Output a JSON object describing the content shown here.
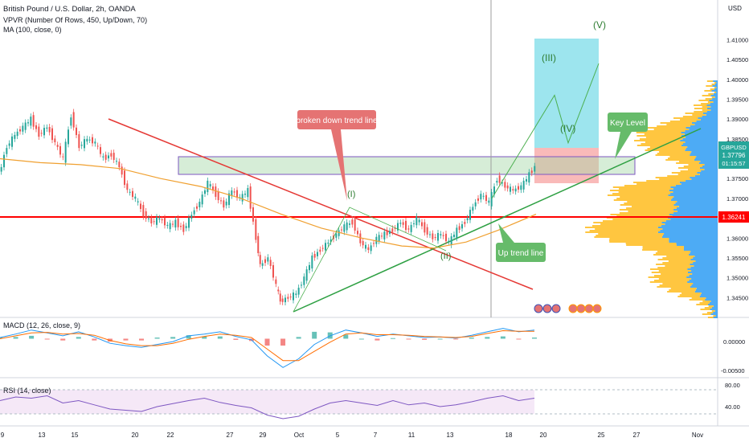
{
  "header": {
    "title": "British Pound / U.S. Dollar, 2h, OANDA",
    "vpvr": "VPVR (Number Of Rows, 450, Up/Down, 70)",
    "ma": "MA (100, close, 0)",
    "macd": "MACD (12, 26, close, 9)",
    "rsi": "RSI (14, close)"
  },
  "colors": {
    "up": "#26a69a",
    "down": "#ef5350",
    "ma": "#f0a030",
    "support": "#ff0000",
    "trend_up": "#2ea043",
    "trend_down": "#e53935",
    "target": "#26c6da",
    "stop": "#ef5350",
    "keylevel": "#a5d6a7",
    "wave": "#4caf50",
    "macd_line": "#2196f3",
    "signal_line": "#ff6d00",
    "rsi": "#7e57c2",
    "vpvr": "#ffb300",
    "vpvr_blue": "#2196f3",
    "price_tag": "#26a69a",
    "support_tag": "#ff0000"
  },
  "chart_data": {
    "type": "line",
    "instrument": "GBPUSD",
    "timeframe": "2h",
    "ylim": [
      1.34,
      1.42
    ],
    "x_ticks": [
      "9",
      "13",
      "15",
      "20",
      "22",
      "27",
      "29",
      "Oct",
      "5",
      "7",
      "11",
      "13",
      "18",
      "20",
      "25",
      "27",
      "Nov"
    ],
    "y_ticks": [
      "1.41000",
      "1.40500",
      "1.40000",
      "1.39500",
      "1.39000",
      "1.38500",
      "1.38000",
      "1.37500",
      "1.37000",
      "1.36500",
      "1.36000",
      "1.35500",
      "1.35000",
      "1.34500"
    ],
    "y_tick_values": [
      1.41,
      1.405,
      1.4,
      1.395,
      1.39,
      1.385,
      1.38,
      1.375,
      1.37,
      1.365,
      1.36,
      1.355,
      1.35,
      1.345
    ],
    "currency_label": "USD",
    "current_price": {
      "label": "GBPUSD",
      "value": "1.37796",
      "countdown": "01:15:57"
    },
    "support_level": {
      "value": "1.36241"
    },
    "price_path": [
      [
        0,
        1.376
      ],
      [
        10,
        1.383
      ],
      [
        20,
        1.386
      ],
      [
        30,
        1.388
      ],
      [
        40,
        1.39
      ],
      [
        50,
        1.386
      ],
      [
        60,
        1.388
      ],
      [
        70,
        1.384
      ],
      [
        80,
        1.38
      ],
      [
        90,
        1.391
      ],
      [
        100,
        1.383
      ],
      [
        110,
        1.385
      ],
      [
        120,
        1.384
      ],
      [
        130,
        1.38
      ],
      [
        140,
        1.381
      ],
      [
        150,
        1.378
      ],
      [
        160,
        1.372
      ],
      [
        170,
        1.37
      ],
      [
        180,
        1.366
      ],
      [
        190,
        1.364
      ],
      [
        200,
        1.365
      ],
      [
        210,
        1.363
      ],
      [
        220,
        1.364
      ],
      [
        230,
        1.362
      ],
      [
        240,
        1.366
      ],
      [
        250,
        1.369
      ],
      [
        260,
        1.374
      ],
      [
        270,
        1.371
      ],
      [
        280,
        1.368
      ],
      [
        290,
        1.372
      ],
      [
        300,
        1.37
      ],
      [
        310,
        1.372
      ],
      [
        320,
        1.36
      ],
      [
        325,
        1.353
      ],
      [
        335,
        1.355
      ],
      [
        345,
        1.348
      ],
      [
        350,
        1.344
      ],
      [
        360,
        1.345
      ],
      [
        370,
        1.346
      ],
      [
        380,
        1.35
      ],
      [
        390,
        1.355
      ],
      [
        400,
        1.357
      ],
      [
        410,
        1.359
      ],
      [
        420,
        1.361
      ],
      [
        430,
        1.363
      ],
      [
        440,
        1.364
      ],
      [
        450,
        1.359
      ],
      [
        460,
        1.357
      ],
      [
        470,
        1.36
      ],
      [
        480,
        1.361
      ],
      [
        490,
        1.362
      ],
      [
        500,
        1.364
      ],
      [
        510,
        1.362
      ],
      [
        520,
        1.365
      ],
      [
        530,
        1.362
      ],
      [
        540,
        1.36
      ],
      [
        550,
        1.361
      ],
      [
        560,
        1.359
      ],
      [
        570,
        1.362
      ],
      [
        580,
        1.364
      ],
      [
        590,
        1.368
      ],
      [
        600,
        1.371
      ],
      [
        610,
        1.369
      ],
      [
        620,
        1.375
      ],
      [
        630,
        1.373
      ],
      [
        640,
        1.372
      ],
      [
        650,
        1.373
      ],
      [
        660,
        1.376
      ],
      [
        667,
        1.378
      ]
    ],
    "ma_path": [
      [
        0,
        1.38
      ],
      [
        50,
        1.379
      ],
      [
        100,
        1.3785
      ],
      [
        150,
        1.3775
      ],
      [
        200,
        1.375
      ],
      [
        250,
        1.373
      ],
      [
        300,
        1.37
      ],
      [
        350,
        1.366
      ],
      [
        400,
        1.3625
      ],
      [
        450,
        1.36
      ],
      [
        500,
        1.358
      ],
      [
        540,
        1.3575
      ],
      [
        580,
        1.359
      ],
      [
        620,
        1.362
      ],
      [
        667,
        1.366
      ]
    ],
    "projection_wave": [
      [
        612,
        1.37
      ],
      [
        690,
        1.396
      ],
      [
        707,
        1.384
      ],
      [
        745,
        1.404
      ]
    ],
    "annotations": {
      "broken_trend": "broken down trend line",
      "key_level": "Key Level",
      "up_trend": "Up trend line",
      "wave1": "(I)",
      "wave2": "(II)",
      "wave3": "(III)",
      "wave4": "(IV)",
      "wave5": "(V)"
    },
    "macd_ticks": [
      "0.00000",
      "-0.00500"
    ],
    "rsi_ticks": [
      "80.00",
      "40.00"
    ],
    "macd_line": [
      0.0002,
      0.0008,
      0.0015,
      0.001,
      0.0005,
      0.0012,
      0.0003,
      -0.0008,
      -0.0012,
      -0.0015,
      -0.001,
      -0.0005,
      0.0005,
      0.0008,
      0.0012,
      0.0004,
      -0.0002,
      -0.003,
      -0.005,
      -0.0035,
      -0.001,
      0.0005,
      0.0015,
      0.001,
      0.0004,
      0.0008,
      0.0005,
      0.0002,
      0.0003,
      0.0001,
      0.0006,
      0.0012,
      0.0018,
      0.0012,
      0.0015
    ],
    "signal_line": [
      0.0,
      0.0005,
      0.001,
      0.0011,
      0.0008,
      0.0009,
      0.0006,
      -0.0003,
      -0.0009,
      -0.0012,
      -0.0012,
      -0.0008,
      -0.0001,
      0.0004,
      0.0008,
      0.0006,
      0.0002,
      -0.0018,
      -0.0038,
      -0.0038,
      -0.0022,
      -0.0006,
      0.0008,
      0.001,
      0.0007,
      0.0007,
      0.0006,
      0.0004,
      0.0003,
      0.0002,
      0.0004,
      0.0009,
      0.0014,
      0.0013,
      0.0013
    ],
    "rsi": [
      62,
      68,
      66,
      70,
      58,
      62,
      55,
      48,
      46,
      44,
      52,
      57,
      62,
      66,
      59,
      54,
      50,
      38,
      32,
      36,
      48,
      58,
      62,
      58,
      54,
      62,
      55,
      58,
      52,
      55,
      60,
      66,
      70,
      62,
      66
    ]
  }
}
